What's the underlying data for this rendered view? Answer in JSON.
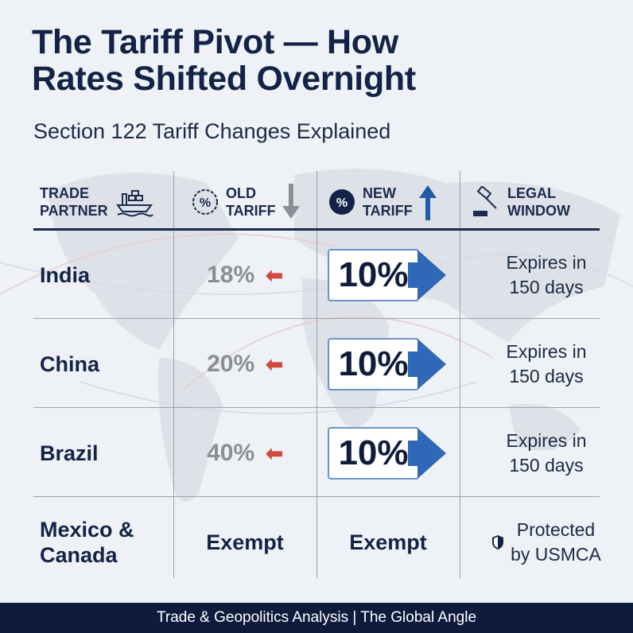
{
  "title_line1": "The Tariff Pivot — How",
  "title_line2": "Rates Shifted Overnight",
  "subtitle": "Section 122 Tariff Changes Explained",
  "headers": [
    {
      "line1": "TRADE",
      "line2": "PARTNER",
      "icon": "cargo-ship-icon"
    },
    {
      "line1": "OLD",
      "line2": "TARIFF",
      "icon": "percent-badge-outline-icon"
    },
    {
      "line1": "NEW",
      "line2": "TARIFF",
      "icon": "percent-badge-filled-icon"
    },
    {
      "line1": "LEGAL",
      "line2": "WINDOW",
      "icon": "gavel-icon"
    }
  ],
  "rows": [
    {
      "partner": "India",
      "old": "18%",
      "new": "10%",
      "legal1": "Expires in",
      "legal2": "150 days"
    },
    {
      "partner": "China",
      "old": "20%",
      "new": "10%",
      "legal1": "Expires in",
      "legal2": "150 days"
    },
    {
      "partner": "Brazil",
      "old": "40%",
      "new": "10%",
      "legal1": "Expires in",
      "legal2": "150 days"
    }
  ],
  "exempt_row": {
    "partner1": "Mexico &",
    "partner2": "Canada",
    "old": "Exempt",
    "new": "Exempt",
    "legal1": "Protected",
    "legal2": "by USMCA",
    "icon": "shield-icon"
  },
  "footer": "Trade & Geopolitics Analysis | The Global Angle",
  "colors": {
    "navy": "#132347",
    "accent_blue": "#2f68b8",
    "red_arrow": "#d0483f",
    "old_grey": "#8a8f96"
  }
}
